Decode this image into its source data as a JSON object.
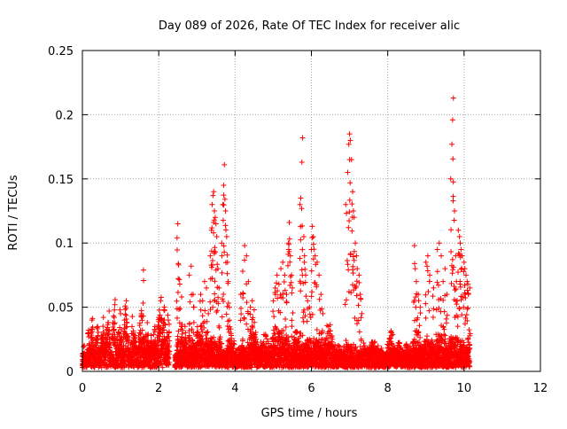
{
  "chart_data": {
    "type": "scatter",
    "title": "Day 089 of 2026, Rate Of TEC Index for receiver alic",
    "xlabel": "GPS time / hours",
    "ylabel": "ROTI / TECUs",
    "xlim": [
      0,
      12
    ],
    "ylim": [
      0,
      0.25
    ],
    "xticks": [
      0,
      2,
      4,
      6,
      8,
      10,
      12
    ],
    "yticks": [
      0,
      0.05,
      0.1,
      0.15,
      0.2,
      0.25
    ],
    "ytick_labels": [
      "0",
      "0.05",
      "0.1",
      "0.15",
      "0.2",
      "0.25"
    ],
    "grid": true,
    "marker": "+",
    "series": [
      {
        "name": "ROTI",
        "color": "#ff0000",
        "baseline_points": [
          [
            0.0,
            0.012
          ],
          [
            0.05,
            0.02
          ],
          [
            0.1,
            0.008
          ],
          [
            0.15,
            0.03
          ],
          [
            0.2,
            0.018
          ],
          [
            0.25,
            0.04
          ],
          [
            0.3,
            0.015
          ],
          [
            0.35,
            0.025
          ],
          [
            0.4,
            0.035
          ],
          [
            0.45,
            0.01
          ],
          [
            0.5,
            0.028
          ],
          [
            0.55,
            0.042
          ],
          [
            0.6,
            0.02
          ],
          [
            0.65,
            0.033
          ],
          [
            0.7,
            0.047
          ],
          [
            0.75,
            0.015
          ],
          [
            0.8,
            0.038
          ],
          [
            0.85,
            0.052
          ],
          [
            0.9,
            0.025
          ],
          [
            0.95,
            0.03
          ],
          [
            1.0,
            0.045
          ],
          [
            1.05,
            0.018
          ],
          [
            1.1,
            0.04
          ],
          [
            1.15,
            0.055
          ],
          [
            1.2,
            0.022
          ],
          [
            1.25,
            0.012
          ],
          [
            1.3,
            0.035
          ],
          [
            1.35,
            0.028
          ],
          [
            1.4,
            0.02
          ],
          [
            1.45,
            0.015
          ],
          [
            1.5,
            0.03
          ],
          [
            1.55,
            0.045
          ],
          [
            1.6,
            0.025
          ],
          [
            1.65,
            0.018
          ],
          [
            1.7,
            0.038
          ],
          [
            1.75,
            0.012
          ],
          [
            1.8,
            0.028
          ],
          [
            1.85,
            0.02
          ],
          [
            1.9,
            0.035
          ],
          [
            1.95,
            0.015
          ],
          [
            2.0,
            0.042
          ],
          [
            2.05,
            0.055
          ],
          [
            2.1,
            0.03
          ],
          [
            2.15,
            0.048
          ],
          [
            2.2,
            0.025
          ],
          [
            2.25,
            0.04
          ],
          [
            2.45,
            0.01
          ],
          [
            2.5,
            0.025
          ],
          [
            2.55,
            0.015
          ],
          [
            2.6,
            0.035
          ],
          [
            2.65,
            0.02
          ],
          [
            2.7,
            0.03
          ],
          [
            2.75,
            0.012
          ],
          [
            2.8,
            0.028
          ],
          [
            2.85,
            0.018
          ],
          [
            2.9,
            0.022
          ],
          [
            2.95,
            0.015
          ],
          [
            3.0,
            0.03
          ],
          [
            3.05,
            0.02
          ],
          [
            3.1,
            0.035
          ],
          [
            3.15,
            0.025
          ],
          [
            3.2,
            0.018
          ],
          [
            3.25,
            0.03
          ],
          [
            3.5,
            0.02
          ],
          [
            3.55,
            0.015
          ],
          [
            3.6,
            0.025
          ],
          [
            3.7,
            0.012
          ],
          [
            3.8,
            0.02
          ],
          [
            3.9,
            0.028
          ],
          [
            4.0,
            0.015
          ],
          [
            4.05,
            0.01
          ],
          [
            4.1,
            0.018
          ],
          [
            4.15,
            0.012
          ],
          [
            4.2,
            0.025
          ],
          [
            4.25,
            0.015
          ],
          [
            4.35,
            0.02
          ],
          [
            4.45,
            0.035
          ],
          [
            4.55,
            0.025
          ],
          [
            4.6,
            0.015
          ],
          [
            4.7,
            0.02
          ],
          [
            4.8,
            0.028
          ],
          [
            4.9,
            0.018
          ],
          [
            5.0,
            0.025
          ],
          [
            5.05,
            0.035
          ],
          [
            5.4,
            0.02
          ],
          [
            5.5,
            0.015
          ],
          [
            5.55,
            0.025
          ],
          [
            5.6,
            0.03
          ],
          [
            5.85,
            0.02
          ],
          [
            5.95,
            0.025
          ],
          [
            6.0,
            0.018
          ],
          [
            6.05,
            0.022
          ],
          [
            6.35,
            0.02
          ],
          [
            6.45,
            0.035
          ],
          [
            6.55,
            0.025
          ],
          [
            6.6,
            0.015
          ],
          [
            6.7,
            0.02
          ],
          [
            6.8,
            0.012
          ],
          [
            6.9,
            0.018
          ],
          [
            7.3,
            0.015
          ],
          [
            7.4,
            0.02
          ],
          [
            7.45,
            0.012
          ],
          [
            7.5,
            0.015
          ],
          [
            7.6,
            0.02
          ],
          [
            7.7,
            0.018
          ],
          [
            7.8,
            0.015
          ],
          [
            7.9,
            0.012
          ],
          [
            8.0,
            0.018
          ],
          [
            8.05,
            0.025
          ],
          [
            8.1,
            0.03
          ],
          [
            8.15,
            0.02
          ],
          [
            8.2,
            0.015
          ],
          [
            8.3,
            0.02
          ],
          [
            8.4,
            0.012
          ],
          [
            8.5,
            0.018
          ],
          [
            8.6,
            0.015
          ],
          [
            8.7,
            0.025
          ],
          [
            8.8,
            0.03
          ],
          [
            8.85,
            0.02
          ],
          [
            9.5,
            0.025
          ],
          [
            9.55,
            0.015
          ],
          [
            9.6,
            0.02
          ],
          [
            9.65,
            0.025
          ],
          [
            10.0,
            0.02
          ],
          [
            10.05,
            0.015
          ],
          [
            10.1,
            0.025
          ],
          [
            10.15,
            0.018
          ]
        ],
        "peak_points": [
          [
            1.6,
            0.079
          ],
          [
            2.5,
            0.115
          ],
          [
            2.48,
            0.104
          ],
          [
            2.52,
            0.083
          ],
          [
            2.55,
            0.068
          ],
          [
            2.6,
            0.058
          ],
          [
            2.85,
            0.082
          ],
          [
            2.8,
            0.075
          ],
          [
            2.9,
            0.06
          ],
          [
            2.92,
            0.05
          ],
          [
            3.1,
            0.06
          ],
          [
            3.15,
            0.055
          ],
          [
            3.2,
            0.07
          ],
          [
            3.25,
            0.065
          ],
          [
            3.3,
            0.045
          ],
          [
            3.35,
            0.09
          ],
          [
            3.38,
            0.11
          ],
          [
            3.4,
            0.13
          ],
          [
            3.42,
            0.137
          ],
          [
            3.44,
            0.14
          ],
          [
            3.46,
            0.125
          ],
          [
            3.48,
            0.12
          ],
          [
            3.5,
            0.115
          ],
          [
            3.52,
            0.105
          ],
          [
            3.55,
            0.08
          ],
          [
            3.58,
            0.065
          ],
          [
            3.65,
            0.1
          ],
          [
            3.68,
            0.13
          ],
          [
            3.7,
            0.145
          ],
          [
            3.72,
            0.161
          ],
          [
            3.75,
            0.125
          ],
          [
            3.78,
            0.105
          ],
          [
            3.8,
            0.085
          ],
          [
            3.82,
            0.07
          ],
          [
            3.85,
            0.05
          ],
          [
            4.15,
            0.06
          ],
          [
            4.2,
            0.078
          ],
          [
            4.25,
            0.098
          ],
          [
            4.3,
            0.09
          ],
          [
            4.35,
            0.07
          ],
          [
            4.4,
            0.05
          ],
          [
            4.45,
            0.055
          ],
          [
            4.5,
            0.048
          ],
          [
            5.0,
            0.055
          ],
          [
            5.05,
            0.065
          ],
          [
            5.1,
            0.075
          ],
          [
            5.15,
            0.068
          ],
          [
            5.2,
            0.08
          ],
          [
            5.25,
            0.085
          ],
          [
            5.3,
            0.075
          ],
          [
            5.35,
            0.06
          ],
          [
            5.4,
            0.1
          ],
          [
            5.42,
            0.116
          ],
          [
            5.45,
            0.09
          ],
          [
            5.48,
            0.075
          ],
          [
            5.5,
            0.065
          ],
          [
            5.7,
            0.13
          ],
          [
            5.72,
            0.135
          ],
          [
            5.75,
            0.163
          ],
          [
            5.77,
            0.182
          ],
          [
            5.8,
            0.105
          ],
          [
            5.82,
            0.09
          ],
          [
            5.85,
            0.075
          ],
          [
            5.9,
            0.055
          ],
          [
            5.95,
            0.05
          ],
          [
            6.0,
            0.095
          ],
          [
            6.02,
            0.113
          ],
          [
            6.05,
            0.105
          ],
          [
            6.1,
            0.09
          ],
          [
            6.15,
            0.085
          ],
          [
            6.2,
            0.075
          ],
          [
            6.25,
            0.06
          ],
          [
            6.3,
            0.045
          ],
          [
            6.9,
            0.13
          ],
          [
            6.95,
            0.155
          ],
          [
            6.98,
            0.177
          ],
          [
            7.0,
            0.185
          ],
          [
            7.02,
            0.18
          ],
          [
            7.05,
            0.165
          ],
          [
            7.08,
            0.14
          ],
          [
            7.1,
            0.125
          ],
          [
            7.12,
            0.12
          ],
          [
            7.15,
            0.1
          ],
          [
            7.18,
            0.09
          ],
          [
            7.2,
            0.08
          ],
          [
            7.25,
            0.075
          ],
          [
            7.28,
            0.06
          ],
          [
            7.32,
            0.045
          ],
          [
            8.7,
            0.098
          ],
          [
            8.72,
            0.08
          ],
          [
            8.75,
            0.07
          ],
          [
            8.8,
            0.06
          ],
          [
            8.85,
            0.05
          ],
          [
            9.0,
            0.085
          ],
          [
            9.05,
            0.09
          ],
          [
            9.1,
            0.075
          ],
          [
            9.2,
            0.065
          ],
          [
            9.3,
            0.095
          ],
          [
            9.35,
            0.1
          ],
          [
            9.4,
            0.09
          ],
          [
            9.45,
            0.07
          ],
          [
            9.5,
            0.08
          ],
          [
            9.55,
            0.06
          ],
          [
            9.65,
            0.15
          ],
          [
            9.68,
            0.177
          ],
          [
            9.7,
            0.196
          ],
          [
            9.72,
            0.213
          ],
          [
            9.75,
            0.125
          ],
          [
            9.78,
            0.09
          ],
          [
            9.8,
            0.07
          ],
          [
            9.82,
            0.055
          ],
          [
            9.85,
            0.11
          ],
          [
            9.88,
            0.105
          ],
          [
            9.9,
            0.1
          ],
          [
            9.92,
            0.095
          ],
          [
            9.95,
            0.09
          ],
          [
            10.0,
            0.085
          ],
          [
            10.02,
            0.08
          ],
          [
            10.05,
            0.075
          ],
          [
            10.08,
            0.07
          ],
          [
            10.1,
            0.068
          ],
          [
            10.15,
            0.065
          ]
        ]
      }
    ]
  }
}
